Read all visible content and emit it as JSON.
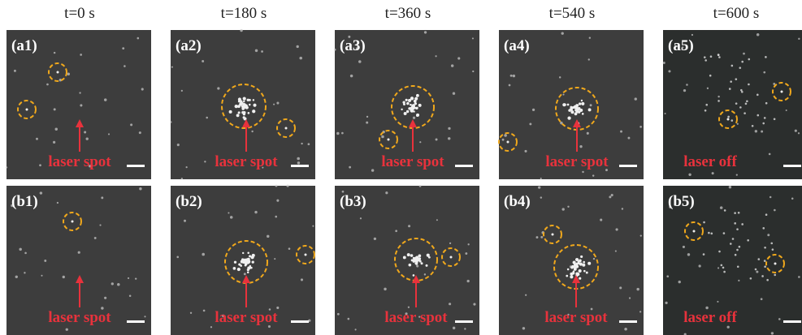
{
  "headers": [
    "t=0 s",
    "t=180 s",
    "t=360 s",
    "t=540 s",
    "t=600 s"
  ],
  "panels": [
    {
      "label": "(a1)",
      "annotation": "laser spot"
    },
    {
      "label": "(a2)",
      "annotation": "laser spot"
    },
    {
      "label": "(a3)",
      "annotation": "laser spot"
    },
    {
      "label": "(a4)",
      "annotation": "laser spot"
    },
    {
      "label": "(a5)",
      "annotation": "laser off"
    },
    {
      "label": "(b1)",
      "annotation": "laser spot"
    },
    {
      "label": "(b2)",
      "annotation": "laser spot"
    },
    {
      "label": "(b3)",
      "annotation": "laser spot"
    },
    {
      "label": "(b4)",
      "annotation": "laser spot"
    },
    {
      "label": "(b5)",
      "annotation": "laser off"
    }
  ]
}
